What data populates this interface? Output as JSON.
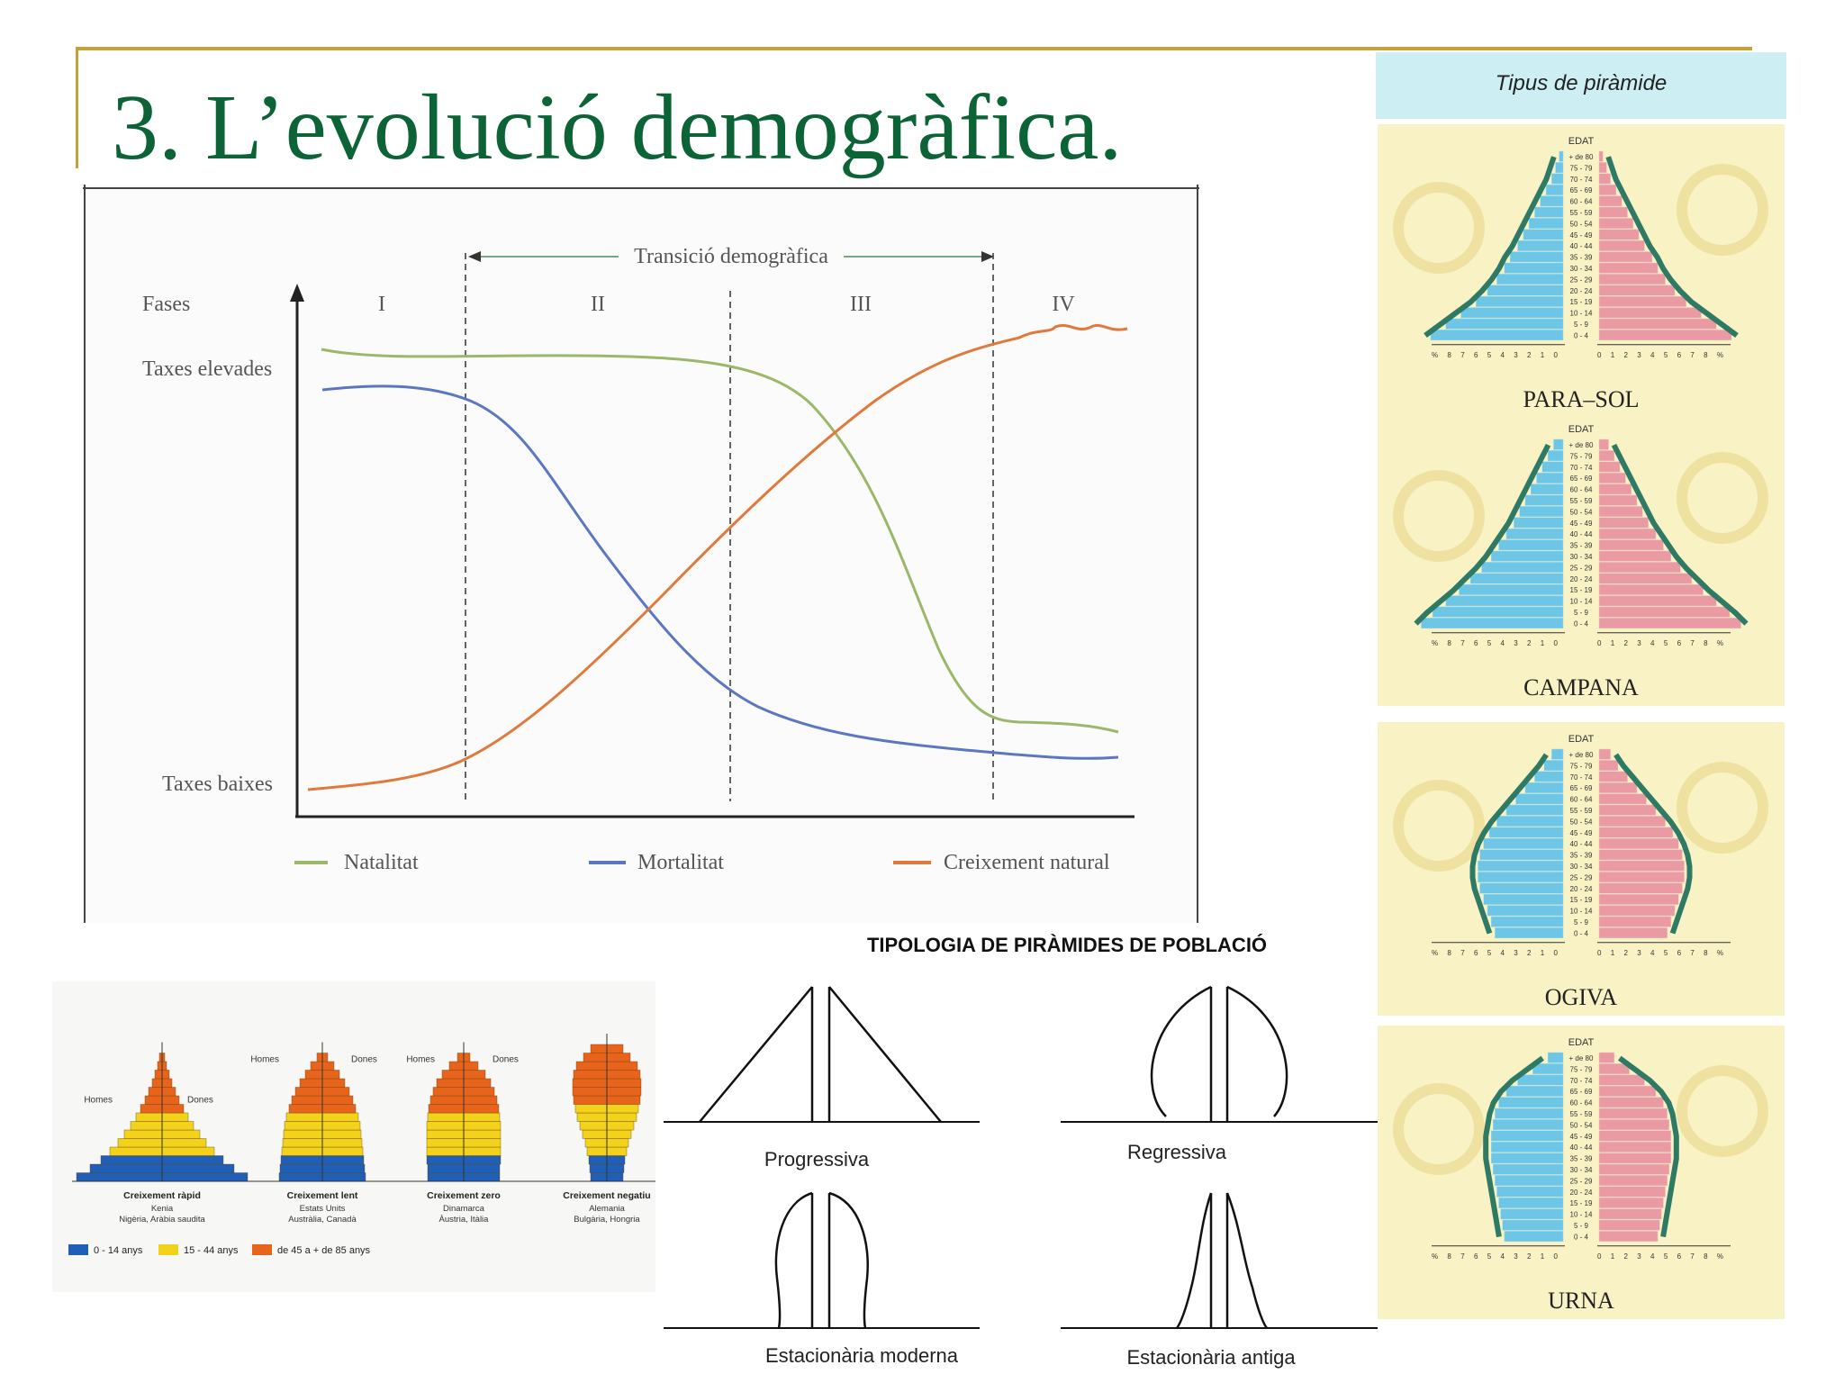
{
  "slide": {
    "title": "3. L’evolució demogràfica."
  },
  "transition_chart": {
    "transition_label": "Transició demogràfica",
    "phases_label": "Fases",
    "phases": [
      "I",
      "II",
      "III",
      "IV"
    ],
    "y_high": "Taxes elevades",
    "y_low": "Taxes baixes",
    "legend": [
      {
        "label": "Natalitat",
        "color": "#9bb86a"
      },
      {
        "label": "Mortalitat",
        "color": "#5c77c2"
      },
      {
        "label": "Creixement natural",
        "color": "#e07a3c"
      }
    ]
  },
  "right_panel": {
    "header": "Tipus de piràmide",
    "age_label": "EDAT",
    "age_groups": [
      "+ de 80",
      "75 - 79",
      "70 - 74",
      "65 - 69",
      "60 - 64",
      "55 - 59",
      "50 - 54",
      "45 - 49",
      "40 - 44",
      "35 - 39",
      "30 - 34",
      "25 - 29",
      "20 - 24",
      "15 - 19",
      "10 - 14",
      "5 - 9",
      "0 - 4"
    ],
    "pct_left": "% 8 7 6 5 4 3 2 1 0",
    "pct_right": "0 1 2 3 4 5 6 7 8 %",
    "pyramids": [
      "PARA–SOL",
      "CAMPANA",
      "OGIVA",
      "URNA"
    ],
    "colors": {
      "men": "#6ec6e6",
      "women": "#e99aa3",
      "outline": "#2e7a64",
      "bg": "#f8f2c4",
      "header_bg": "#cdeef2"
    }
  },
  "growth_types": {
    "homes": "Homes",
    "dones": "Dones",
    "types": [
      {
        "title": "Creixement ràpid",
        "examples1": "Kenia",
        "examples2": "Nigèria, Aràbia saudita"
      },
      {
        "title": "Creixement lent",
        "examples1": "Estats Units",
        "examples2": "Austràlia, Canadà"
      },
      {
        "title": "Creixement zero",
        "examples1": "Dinamarca",
        "examples2": "Àustria, Itàlia"
      },
      {
        "title": "Creixement negatiu",
        "examples1": "Alemania",
        "examples2": "Bulgària, Hongria"
      }
    ],
    "legend": [
      {
        "label": "0 - 14 anys",
        "color": "#1f5fb8"
      },
      {
        "label": "15 - 44 anys",
        "color": "#f2d21a"
      },
      {
        "label": "de 45 a + de 85 anys",
        "color": "#e8641c"
      }
    ]
  },
  "typology": {
    "title": "TIPOLOGIA DE PIRÀMIDES DE POBLACIÓ",
    "shapes": [
      "Progressiva",
      "Regressiva",
      "Estacionària moderna",
      "Estacionària antiga"
    ]
  }
}
